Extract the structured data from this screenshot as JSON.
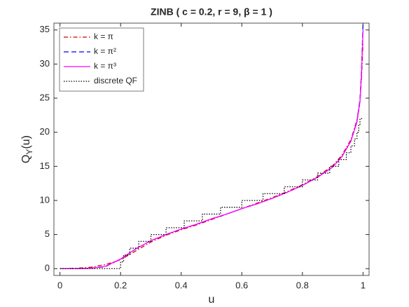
{
  "chart_data": {
    "type": "line",
    "title": "ZINB ( c = 0.2, r = 9, β = 1 )",
    "xlabel": "u",
    "ylabel": [
      "Q",
      "Y",
      "(u)"
    ],
    "xlim": [
      -0.02,
      1.02
    ],
    "ylim": [
      -1,
      36
    ],
    "xticks": [
      0,
      0.2,
      0.4,
      0.6,
      0.8,
      1
    ],
    "yticks": [
      0,
      5,
      10,
      15,
      20,
      25,
      30,
      35
    ],
    "legend": "top-left",
    "series": [
      {
        "name": "k = π",
        "color": "#d40000",
        "linestyle": "dashdot",
        "x": [
          0,
          0.05,
          0.1,
          0.15,
          0.2,
          0.25,
          0.3,
          0.35,
          0.4,
          0.45,
          0.5,
          0.55,
          0.6,
          0.65,
          0.7,
          0.75,
          0.8,
          0.85,
          0.9,
          0.93,
          0.96,
          0.98,
          0.99,
          0.995,
          1
        ],
        "values": [
          0,
          0.05,
          0.2,
          0.6,
          1.3,
          2.6,
          3.9,
          4.9,
          5.7,
          6.4,
          7.2,
          8.0,
          8.8,
          9.6,
          10.4,
          11.3,
          12.3,
          13.5,
          15.1,
          16.6,
          18.9,
          21.8,
          24.5,
          28,
          33
        ]
      },
      {
        "name": "k = π²",
        "color": "#0000ff",
        "linestyle": "dashed",
        "x": [
          0,
          0.05,
          0.1,
          0.15,
          0.2,
          0.25,
          0.3,
          0.35,
          0.4,
          0.45,
          0.5,
          0.55,
          0.6,
          0.65,
          0.7,
          0.75,
          0.8,
          0.85,
          0.9,
          0.93,
          0.96,
          0.98,
          0.99,
          0.995,
          1
        ],
        "values": [
          0,
          0,
          0.05,
          0.3,
          1.4,
          2.9,
          4.1,
          5.0,
          5.8,
          6.5,
          7.3,
          8.0,
          8.8,
          9.5,
          10.3,
          11.2,
          12.2,
          13.4,
          14.9,
          16.4,
          18.7,
          21.6,
          24.8,
          29,
          36
        ]
      },
      {
        "name": "k = π³",
        "color": "#ff00ff",
        "linestyle": "solid",
        "x": [
          0,
          0.05,
          0.1,
          0.15,
          0.2,
          0.25,
          0.3,
          0.35,
          0.4,
          0.45,
          0.5,
          0.55,
          0.6,
          0.65,
          0.7,
          0.75,
          0.8,
          0.85,
          0.9,
          0.93,
          0.96,
          0.98,
          0.99,
          0.995,
          1
        ],
        "values": [
          0,
          0,
          0.05,
          0.35,
          1.4,
          2.9,
          4.1,
          5.0,
          5.8,
          6.5,
          7.3,
          8.0,
          8.8,
          9.5,
          10.3,
          11.2,
          12.2,
          13.4,
          14.9,
          16.4,
          18.7,
          21.5,
          24.5,
          28.5,
          35
        ]
      },
      {
        "name": "discrete QF",
        "color": "#000000",
        "linestyle": "dotted",
        "step": true,
        "x": [
          0,
          0.2,
          0.21,
          0.23,
          0.26,
          0.3,
          0.35,
          0.41,
          0.47,
          0.53,
          0.6,
          0.67,
          0.74,
          0.8,
          0.85,
          0.89,
          0.92,
          0.945,
          0.96,
          0.972,
          0.98,
          0.986,
          0.99,
          1
        ],
        "values": [
          0,
          1,
          2,
          3,
          4,
          5,
          6,
          7,
          8,
          9,
          10,
          11,
          12,
          13,
          14,
          15,
          16,
          17,
          18,
          19,
          20,
          21,
          22,
          22
        ]
      }
    ]
  }
}
